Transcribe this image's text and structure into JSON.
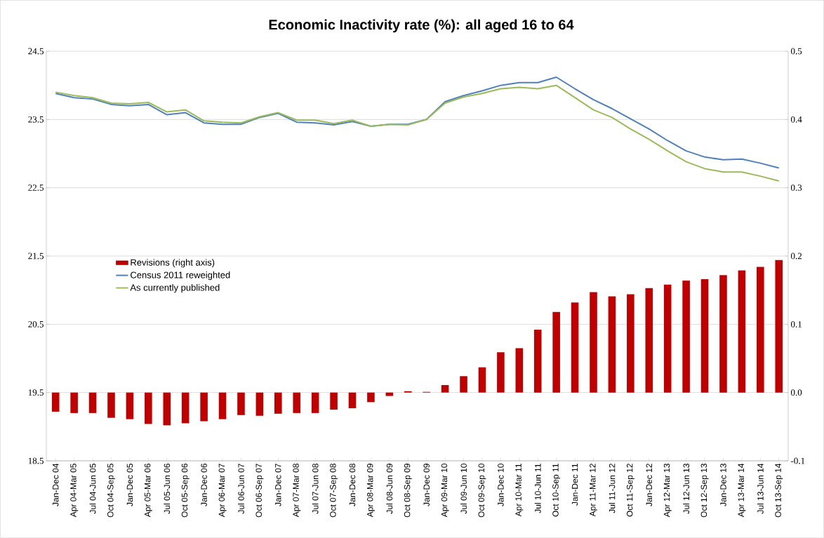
{
  "chart_data": {
    "type": "line",
    "title": "Economic Inactivity rate (%): all aged 16 to 64",
    "categories": [
      "Jan-Dec 04",
      "Apr 04-Mar 05",
      "Jul 04-Jun 05",
      "Oct 04-Sep 05",
      "Jan-Dec 05",
      "Apr 05-Mar 06",
      "Jul 05-Jun 06",
      "Oct 05-Sep 06",
      "Jan-Dec 06",
      "Apr 06-Mar 07",
      "Jul 06-Jun 07",
      "Oct 06-Sep 07",
      "Jan-Dec 07",
      "Apr 07-Mar 08",
      "Jul 07-Jun 08",
      "Oct 07-Sep 08",
      "Jan-Dec 08",
      "Apr 08-Mar 09",
      "Jul 08-Jun 09",
      "Oct 08-Sep 09",
      "Jan-Dec 09",
      "Apr 09-Mar 10",
      "Jul 09-Jun 10",
      "Oct 09-Sep 10",
      "Jan-Dec 10",
      "Apr 10-Mar 11",
      "Jul 10-Jun 11",
      "Oct 10-Sep 11",
      "Jan-Dec 11",
      "Apr 11-Mar 12",
      "Jul 11-Jun 12",
      "Oct 11-Sep 12",
      "Jan-Dec 12",
      "Apr 12-Mar 13",
      "Jul 12-Jun 13",
      "Oct 12-Sep 13",
      "Jan-Dec 13",
      "Apr 13-Mar 14",
      "Jul 13-Jun 14",
      "Oct 13-Sep 14"
    ],
    "series": [
      {
        "name": "Revisions (right axis)",
        "type": "bar",
        "axis": "y2",
        "color": "#c00000",
        "values": [
          -0.028,
          -0.03,
          -0.03,
          -0.037,
          -0.039,
          -0.046,
          -0.048,
          -0.045,
          -0.042,
          -0.039,
          -0.033,
          -0.034,
          -0.031,
          -0.03,
          -0.03,
          -0.025,
          -0.023,
          -0.014,
          -0.005,
          0.002,
          0.001,
          0.011,
          0.024,
          0.037,
          0.059,
          0.065,
          0.092,
          0.118,
          0.132,
          0.147,
          0.141,
          0.144,
          0.153,
          0.158,
          0.164,
          0.166,
          0.172,
          0.179,
          0.184,
          0.194
        ]
      },
      {
        "name": "Census 2011 reweighted",
        "color": "#4f81bd",
        "values": [
          23.88,
          23.82,
          23.8,
          23.72,
          23.7,
          23.72,
          23.57,
          23.6,
          23.45,
          23.43,
          23.43,
          23.53,
          23.59,
          23.46,
          23.45,
          23.42,
          23.47,
          23.4,
          23.43,
          23.43,
          23.5,
          23.76,
          23.85,
          23.92,
          24.0,
          24.04,
          24.04,
          24.12,
          23.95,
          23.79,
          23.66,
          23.51,
          23.36,
          23.19,
          23.04,
          22.95,
          22.91,
          22.92,
          22.86,
          22.79
        ]
      },
      {
        "name": "As currently published",
        "color": "#9bbb59",
        "values": [
          23.9,
          23.85,
          23.82,
          23.74,
          23.73,
          23.75,
          23.61,
          23.64,
          23.48,
          23.46,
          23.45,
          23.54,
          23.6,
          23.49,
          23.49,
          23.44,
          23.49,
          23.4,
          23.43,
          23.42,
          23.5,
          23.74,
          23.83,
          23.88,
          23.95,
          23.97,
          23.95,
          24.0,
          23.82,
          23.64,
          23.53,
          23.36,
          23.21,
          23.04,
          22.88,
          22.78,
          22.73,
          22.73,
          22.67,
          22.6
        ]
      }
    ],
    "ylim": [
      18.5,
      24.5
    ],
    "yticks": [
      18.5,
      19.5,
      20.5,
      21.5,
      22.5,
      23.5,
      24.5
    ],
    "y2lim": [
      -0.1,
      0.5
    ],
    "y2ticks": [
      -0.1,
      {
        "value": 0,
        "label": "0.0"
      },
      0.1,
      0.2,
      0.3,
      0.4,
      0.5
    ],
    "grid": "y",
    "legend": "left",
    "marker": "none",
    "line_style": "solid"
  }
}
